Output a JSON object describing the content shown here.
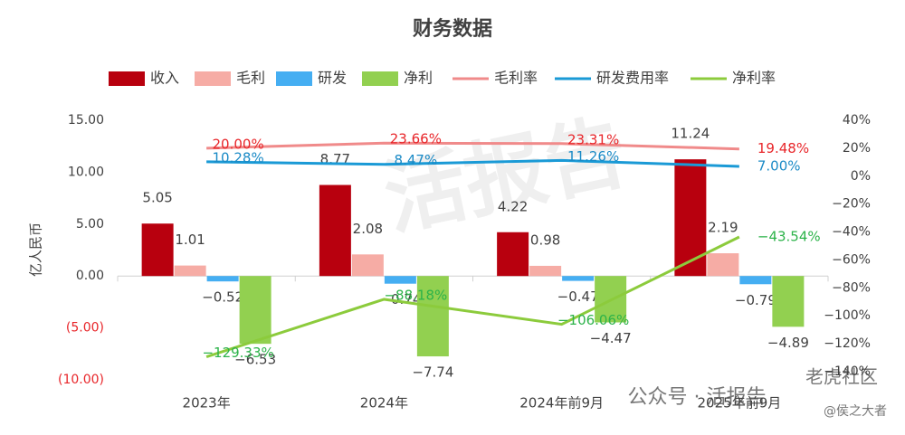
{
  "chart_data": {
    "type": "bar-line",
    "title": "财务数据",
    "y_label": "亿人民币",
    "categories": [
      "2023年",
      "2024年",
      "2024年前9月",
      "2025年前9月"
    ],
    "series": [
      {
        "name": "收入",
        "kind": "bar",
        "color": "#b8000e",
        "values": [
          5.05,
          8.77,
          4.22,
          11.24
        ]
      },
      {
        "name": "毛利",
        "kind": "bar",
        "color": "#f6aca5",
        "values": [
          1.01,
          2.08,
          0.98,
          2.19
        ]
      },
      {
        "name": "研发",
        "kind": "bar",
        "color": "#45aef2",
        "values": [
          -0.52,
          -0.74,
          -0.47,
          -0.79
        ],
        "value_labels": [
          "−0.52",
          "−0.74",
          "−0.47",
          "−0.79"
        ]
      },
      {
        "name": "净利",
        "kind": "bar",
        "color": "#92d050",
        "values": [
          -6.53,
          -7.74,
          -4.47,
          -4.89
        ],
        "value_labels": [
          "−6.53",
          "−7.74",
          "−4.47",
          "−4.89"
        ]
      },
      {
        "name": "毛利率",
        "kind": "line",
        "axis": "y2",
        "color": "#f08a8a",
        "label_color": "#e8262a",
        "values": [
          20.0,
          23.66,
          23.31,
          19.48
        ],
        "value_labels": [
          "20.00%",
          "23.66%",
          "23.31%",
          "19.48%"
        ]
      },
      {
        "name": "研发费用率",
        "kind": "line",
        "axis": "y2",
        "color": "#1a9ad6",
        "label_color": "#1a8ac6",
        "values": [
          10.28,
          8.47,
          11.26,
          7.0
        ],
        "value_labels": [
          "10.28%",
          "8.47%",
          "11.26%",
          "7.00%"
        ]
      },
      {
        "name": "净利率",
        "kind": "line",
        "axis": "y2",
        "color": "#8ccb3c",
        "label_color": "#2db34a",
        "values": [
          -129.33,
          -88.18,
          -106.06,
          -43.54
        ],
        "value_labels": [
          "−129.33%",
          "−88.18%",
          "−106.06%",
          "−43.54%"
        ]
      }
    ],
    "ylim": [
      -10,
      15
    ],
    "yticks": [
      {
        "value": -10,
        "label": "(10.00)"
      },
      {
        "value": -5,
        "label": "(5.00)"
      },
      {
        "value": 0,
        "label": "0.00"
      },
      {
        "value": 5,
        "label": "5.00"
      },
      {
        "value": 10,
        "label": "10.00"
      },
      {
        "value": 15,
        "label": "15.00"
      }
    ],
    "y2lim": [
      -140,
      40
    ],
    "y2ticks": [
      {
        "value": -140,
        "label": "−140%"
      },
      {
        "value": -120,
        "label": "−120%"
      },
      {
        "value": -100,
        "label": "−100%"
      },
      {
        "value": -80,
        "label": "−80%"
      },
      {
        "value": -60,
        "label": "−60%"
      },
      {
        "value": -40,
        "label": "−40%"
      },
      {
        "value": -20,
        "label": "−20%"
      },
      {
        "value": 0,
        "label": "0%"
      },
      {
        "value": 20,
        "label": "20%"
      },
      {
        "value": 40,
        "label": "40%"
      }
    ],
    "legend": "top",
    "watermark": [
      "活报告",
      "公众号 · 活报告",
      "老虎社区",
      "@侯之大者"
    ]
  }
}
